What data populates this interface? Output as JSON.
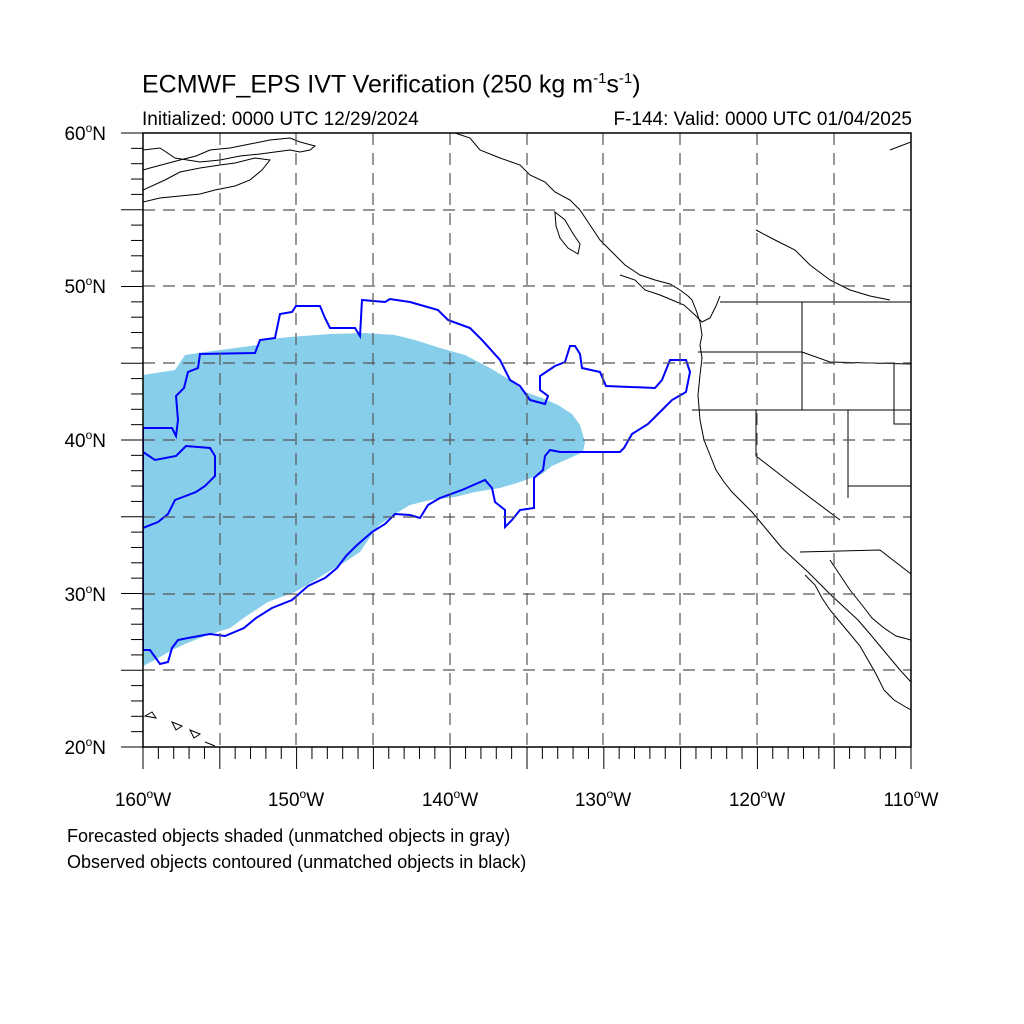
{
  "header": {
    "title_main": "ECMWF_EPS IVT Verification (250 kg m",
    "title_sup1": "-1",
    "title_mid": "s",
    "title_sup2": "-1",
    "title_end": ")",
    "initialized": "Initialized: 0000 UTC 12/29/2024",
    "valid": "F-144: Valid: 0000 UTC 01/04/2025"
  },
  "axes": {
    "lon_labels": [
      "160",
      "150",
      "140",
      "130",
      "120",
      "110"
    ],
    "lon_suffix": "W",
    "lat_labels": [
      "60",
      "50",
      "40",
      "30",
      "20"
    ],
    "lat_suffix": "N",
    "degree_symbol": "o",
    "lon_range": [
      -160,
      -110
    ],
    "lat_range": [
      20,
      60
    ],
    "grid": "dashed, every 5 degrees"
  },
  "legend": {
    "line1": "Forecasted objects shaded (unmatched objects in gray)",
    "line2": "Observed objects contoured (unmatched objects in black)"
  },
  "colors": {
    "forecast_fill": "#87ceeb",
    "observed_contour": "#0000ff",
    "coastline": "#000000",
    "grid": "#555555"
  }
}
